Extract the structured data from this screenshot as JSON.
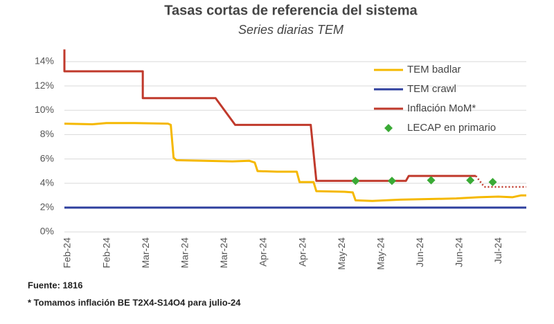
{
  "chart_data": {
    "type": "line",
    "title": "Tasas cortas de referencia del sistema",
    "subtitle": "Series diarias TEM",
    "xlim": [
      0,
      165
    ],
    "xticks": [
      {
        "value": 0,
        "label": "Feb-24"
      },
      {
        "value": 14,
        "label": "Feb-24"
      },
      {
        "value": 28,
        "label": "Mar-24"
      },
      {
        "value": 42,
        "label": "Mar-24"
      },
      {
        "value": 56,
        "label": "Mar-24"
      },
      {
        "value": 70,
        "label": "Apr-24"
      },
      {
        "value": 84,
        "label": "Apr-24"
      },
      {
        "value": 98,
        "label": "May-24"
      },
      {
        "value": 112,
        "label": "May-24"
      },
      {
        "value": 126,
        "label": "Jun-24"
      },
      {
        "value": 140,
        "label": "Jun-24"
      },
      {
        "value": 154,
        "label": "Jul-24"
      }
    ],
    "ylim": [
      0,
      14
    ],
    "yticks": [
      {
        "value": 0,
        "label": "0%"
      },
      {
        "value": 2,
        "label": "2%"
      },
      {
        "value": 4,
        "label": "4%"
      },
      {
        "value": 6,
        "label": "6%"
      },
      {
        "value": 8,
        "label": "8%"
      },
      {
        "value": 10,
        "label": "10%"
      },
      {
        "value": 12,
        "label": "12%"
      },
      {
        "value": 14,
        "label": "14%"
      }
    ],
    "grid": true,
    "legend": "top-right",
    "series": [
      {
        "name": "TEM badlar",
        "color": "#f5b800",
        "kind": "line",
        "x": [
          0,
          10,
          15,
          25,
          37,
          38,
          39,
          40,
          50,
          60,
          66,
          68,
          69,
          76,
          83,
          84,
          89,
          90,
          100,
          103,
          104,
          110,
          120,
          130,
          140,
          148,
          155,
          160,
          163,
          165
        ],
        "values": [
          8.9,
          8.85,
          8.95,
          8.95,
          8.9,
          8.8,
          6.1,
          5.9,
          5.85,
          5.8,
          5.85,
          5.7,
          5.0,
          4.95,
          4.95,
          4.1,
          4.1,
          3.35,
          3.3,
          3.25,
          2.6,
          2.55,
          2.65,
          2.7,
          2.75,
          2.85,
          2.9,
          2.85,
          3.0,
          3.0
        ]
      },
      {
        "name": "TEM crawl",
        "color": "#2e3f9e",
        "kind": "line",
        "x": [
          0,
          165
        ],
        "values": [
          2,
          2
        ]
      },
      {
        "name": "Inflación MoM*",
        "color": "#c0392b",
        "kind": "line",
        "x": [
          0,
          0,
          28,
          28,
          54,
          61,
          88,
          90,
          122,
          123,
          147
        ],
        "values": [
          15,
          13.2,
          13.2,
          11.0,
          11.0,
          8.8,
          8.8,
          4.2,
          4.2,
          4.6,
          4.6
        ],
        "projection_x": [
          147,
          150,
          165
        ],
        "projection_values": [
          4.6,
          3.7,
          3.7
        ]
      },
      {
        "name": "LECAP en primario",
        "color": "#3aaa35",
        "kind": "marker",
        "x": [
          104,
          117,
          131,
          145,
          153
        ],
        "values": [
          4.2,
          4.2,
          4.25,
          4.25,
          4.1
        ]
      }
    ],
    "notes": [
      "Fuente: 1816",
      "* Tomamos inflación BE T2X4-S14O4 para julio-24"
    ]
  }
}
